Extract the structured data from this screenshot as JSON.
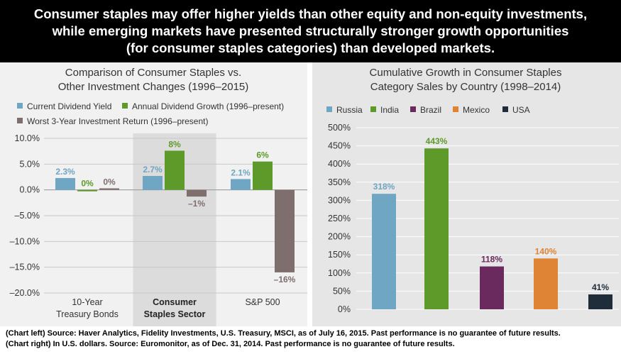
{
  "header": {
    "line1": "Consumer staples may offer higher yields than other equity and non-equity investments,",
    "line2": "while emerging markets have presented structurally stronger growth opportunities",
    "line3": "(for consumer staples categories) than developed markets."
  },
  "colors": {
    "current_dividend_yield": "#6ea6c3",
    "annual_dividend_growth": "#5e9a2a",
    "worst_3yr_return": "#7f6e6e",
    "russia": "#6ea6c3",
    "india": "#5e9a2a",
    "brazil": "#6a2a5e",
    "mexico": "#de8434",
    "usa": "#1f2d3a"
  },
  "chart_data": [
    {
      "type": "bar",
      "title_line1": "Comparison of Consumer Staples vs.",
      "title_line2": "Other Investment Changes (1996–2015)",
      "categories": [
        {
          "line1": "10-Year",
          "line2": "Treasury Bonds",
          "highlight": false
        },
        {
          "line1": "Consumer",
          "line2": "Staples Sector",
          "highlight": true
        },
        {
          "line1": "S&P 500",
          "line2": "",
          "highlight": false
        }
      ],
      "series": [
        {
          "name": "Current Dividend Yield",
          "color_key": "current_dividend_yield",
          "values": [
            2.3,
            2.7,
            2.1
          ],
          "labels": [
            "2.3%",
            "2.7%",
            "2.1%"
          ]
        },
        {
          "name": "Annual Dividend Growth (1996–present)",
          "color_key": "annual_dividend_growth",
          "values": [
            0,
            7.6,
            5.5
          ],
          "labels": [
            "0%",
            "8%",
            "6%"
          ]
        },
        {
          "name": "Worst 3-Year Investment Return (1996–present)",
          "color_key": "worst_3yr_return",
          "values": [
            0.3,
            -1.3,
            -16.0
          ],
          "labels": [
            "0%",
            "–1%",
            "–16%"
          ]
        }
      ],
      "ylim": [
        -20,
        10
      ],
      "yticks": [
        10,
        5,
        0,
        -5,
        -10,
        -15,
        -20
      ],
      "ytick_labels": [
        "10.0%",
        "5.0%",
        "0.0%",
        "–5.0%",
        "–10.0%",
        "–15.0%",
        "–20.0%"
      ],
      "grid": true,
      "legend": "top"
    },
    {
      "type": "bar",
      "title_line1": "Cumulative Growth in Consumer Staples",
      "title_line2": "Category Sales by Country (1998–2014)",
      "categories": [
        "Russia",
        "India",
        "Brazil",
        "Mexico",
        "USA"
      ],
      "color_keys": [
        "russia",
        "india",
        "brazil",
        "mexico",
        "usa"
      ],
      "values": [
        318,
        443,
        118,
        140,
        41
      ],
      "labels": [
        "318%",
        "443%",
        "118%",
        "140%",
        "41%"
      ],
      "ylim": [
        0,
        500
      ],
      "yticks": [
        500,
        450,
        400,
        350,
        300,
        250,
        200,
        150,
        100,
        50,
        0
      ],
      "ytick_labels": [
        "500%",
        "450%",
        "400%",
        "350%",
        "300%",
        "250%",
        "200%",
        "150%",
        "100%",
        "50%",
        "0%"
      ],
      "grid": true,
      "legend": "top"
    }
  ],
  "footer": {
    "line1": "(Chart left) Source: Haver Analytics, Fidelity Investments, U.S. Treasury, MSCI, as of July 16, 2015. Past performance is no guarantee of future results.",
    "line2": "(Chart right) In U.S. dollars. Source: Euromonitor, as of Dec. 31, 2014. Past performance is no guarantee of future results."
  }
}
